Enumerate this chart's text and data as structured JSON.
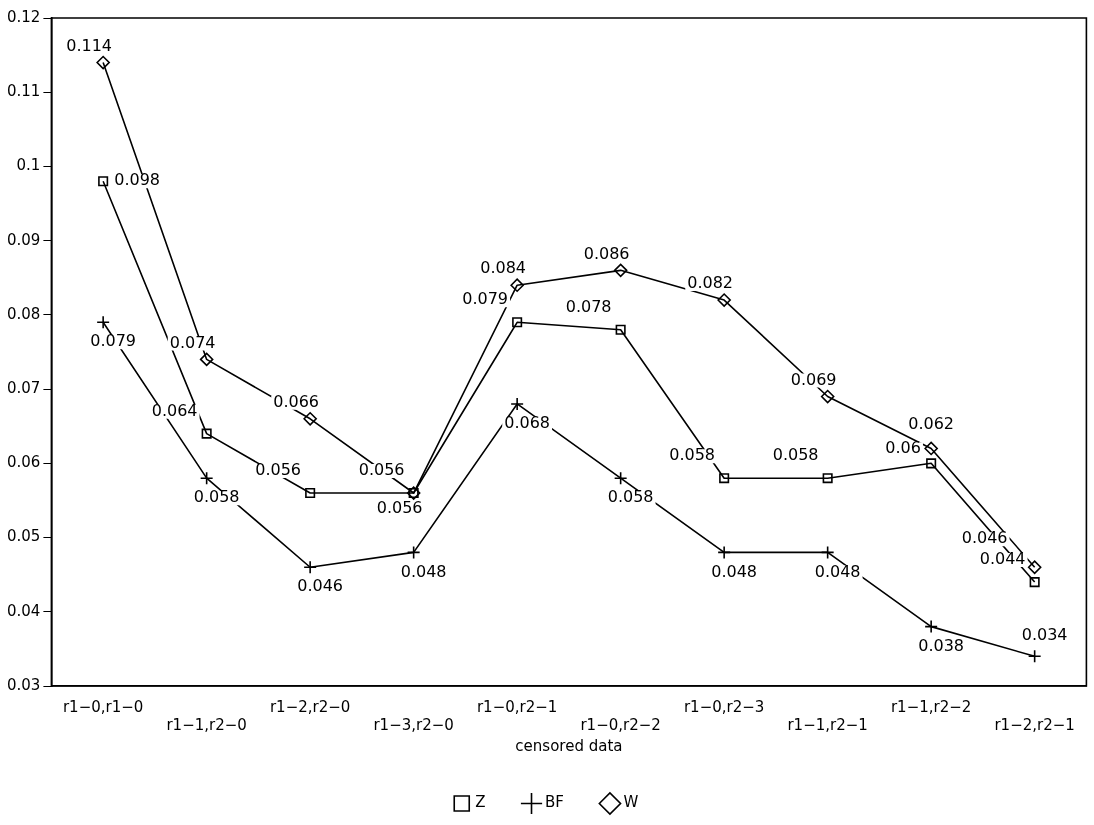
{
  "chart_data": {
    "type": "line",
    "xlabel": "censored data",
    "categories": [
      "r1−0,r1−0",
      "r1−1,r2−0",
      "r1−2,r2−0",
      "r1−3,r2−0",
      "r1−0,r2−1",
      "r1−0,r2−2",
      "r1−0,r2−3",
      "r1−1,r2−1",
      "r1−1,r2−2",
      "r1−2,r2−1"
    ],
    "series": [
      {
        "name": "Z",
        "color": "#000000",
        "marker": "square",
        "values": [
          0.098,
          0.064,
          0.056,
          0.056,
          0.079,
          0.078,
          0.058,
          0.058,
          0.06,
          0.044
        ]
      },
      {
        "name": "BF",
        "color": "#000000",
        "marker": "cross",
        "values": [
          0.079,
          0.058,
          0.046,
          0.048,
          0.068,
          0.058,
          0.048,
          0.048,
          0.038,
          0.034
        ]
      },
      {
        "name": "W",
        "color": "#000000",
        "marker": "diamond",
        "values": [
          0.114,
          0.074,
          0.066,
          0.056,
          0.084,
          0.086,
          0.082,
          0.069,
          0.062,
          0.046
        ]
      }
    ],
    "ylim": [
      0.03,
      0.12
    ],
    "yticks": [
      0.03,
      0.04,
      0.05,
      0.06,
      0.07,
      0.08,
      0.09,
      0.1,
      0.11,
      0.12
    ],
    "grid": false,
    "legend": "bottom",
    "data_labels": true,
    "line_style": "solid"
  }
}
